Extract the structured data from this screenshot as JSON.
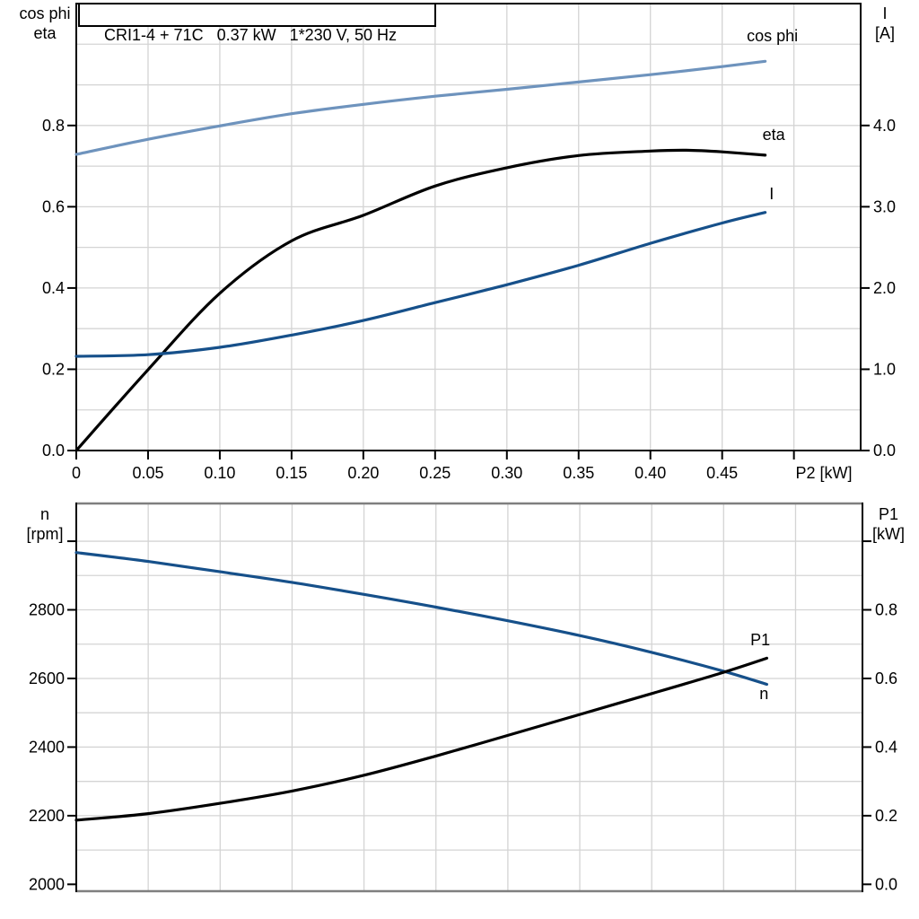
{
  "title_box": {
    "text": "CRI1-4 + 71C   0.37 kW   1*230 V, 50 Hz"
  },
  "colors": {
    "cos_phi_curve": "#6e93bd",
    "current_curve": "#16508a",
    "black_curve": "#000000",
    "grid": "#d4d4d4",
    "frame_gray": "#7f7f7f",
    "axis": "#000000",
    "text": "#000000"
  },
  "chart_data": [
    {
      "type": "line",
      "title": "CRI1-4 + 71C   0.37 kW   1*230 V, 50 Hz",
      "x_axis": {
        "label": "P2 [kW]",
        "lim": [
          0,
          0.5465
        ],
        "grid": [
          0.05,
          0.1,
          0.15,
          0.2,
          0.25,
          0.3,
          0.35,
          0.4,
          0.45,
          0.5
        ],
        "ticks": [
          {
            "v": 0,
            "label": "0"
          },
          {
            "v": 0.05,
            "label": "0.05"
          },
          {
            "v": 0.1,
            "label": "0.10"
          },
          {
            "v": 0.15,
            "label": "0.15"
          },
          {
            "v": 0.2,
            "label": "0.20"
          },
          {
            "v": 0.25,
            "label": "0.25"
          },
          {
            "v": 0.3,
            "label": "0.30"
          },
          {
            "v": 0.35,
            "label": "0.35"
          },
          {
            "v": 0.4,
            "label": "0.40"
          },
          {
            "v": 0.45,
            "label": "0.45"
          },
          {
            "v": 0.5,
            "label": ""
          }
        ]
      },
      "left_axis": {
        "label_lines": [
          "cos phi",
          "eta"
        ],
        "lim": [
          0,
          1.1
        ],
        "grid": [
          0.1,
          0.2,
          0.3,
          0.4,
          0.5,
          0.6,
          0.7,
          0.8,
          0.9,
          1.0
        ],
        "ticks": [
          {
            "v": 0.0,
            "label": "0.0"
          },
          {
            "v": 0.2,
            "label": "0.2"
          },
          {
            "v": 0.4,
            "label": "0.4"
          },
          {
            "v": 0.6,
            "label": "0.6"
          },
          {
            "v": 0.8,
            "label": "0.8"
          }
        ]
      },
      "right_axis": {
        "label_lines": [
          "I",
          "[A]"
        ],
        "lim": [
          0,
          5.5
        ],
        "ticks": [
          {
            "v": 0.0,
            "label": "0.0"
          },
          {
            "v": 1.0,
            "label": "1.0"
          },
          {
            "v": 2.0,
            "label": "2.0"
          },
          {
            "v": 3.0,
            "label": "3.0"
          },
          {
            "v": 4.0,
            "label": "4.0"
          }
        ]
      },
      "series": [
        {
          "name": "cos phi",
          "axis": "left",
          "color_key": "cos_phi_curve",
          "label": "cos phi",
          "label_at": {
            "x": 0.485,
            "y": 1.007
          },
          "points": [
            [
              0,
              0.729
            ],
            [
              0.05,
              0.766
            ],
            [
              0.1,
              0.799
            ],
            [
              0.15,
              0.829
            ],
            [
              0.2,
              0.852
            ],
            [
              0.25,
              0.872
            ],
            [
              0.3,
              0.889
            ],
            [
              0.35,
              0.907
            ],
            [
              0.4,
              0.925
            ],
            [
              0.45,
              0.945
            ],
            [
              0.48,
              0.958
            ]
          ]
        },
        {
          "name": "eta",
          "axis": "left",
          "color_key": "black_curve",
          "label": "eta",
          "label_at": {
            "x": 0.486,
            "y": 0.764
          },
          "points": [
            [
              0,
              0.0
            ],
            [
              0.05,
              0.199
            ],
            [
              0.1,
              0.387
            ],
            [
              0.15,
              0.516
            ],
            [
              0.2,
              0.579
            ],
            [
              0.25,
              0.651
            ],
            [
              0.3,
              0.696
            ],
            [
              0.35,
              0.726
            ],
            [
              0.4,
              0.737
            ],
            [
              0.425,
              0.739
            ],
            [
              0.45,
              0.735
            ],
            [
              0.48,
              0.727
            ]
          ]
        },
        {
          "name": "I",
          "axis": "right",
          "color_key": "current_curve",
          "label": "I",
          "label_at": {
            "x": 0.4845,
            "y": 3.09
          },
          "points": [
            [
              0,
              1.16
            ],
            [
              0.05,
              1.18
            ],
            [
              0.1,
              1.27
            ],
            [
              0.15,
              1.42
            ],
            [
              0.2,
              1.6
            ],
            [
              0.25,
              1.82
            ],
            [
              0.3,
              2.04
            ],
            [
              0.35,
              2.28
            ],
            [
              0.4,
              2.55
            ],
            [
              0.45,
              2.8
            ],
            [
              0.48,
              2.93
            ]
          ]
        }
      ]
    },
    {
      "type": "line",
      "title": "",
      "x_axis": {
        "label": "",
        "lim": [
          0,
          0.5465
        ],
        "grid": [
          0.05,
          0.1,
          0.15,
          0.2,
          0.25,
          0.3,
          0.35,
          0.4,
          0.45,
          0.5
        ],
        "ticks": []
      },
      "left_axis": {
        "label_lines": [
          "n",
          "[rpm]"
        ],
        "lim": [
          1980,
          3110
        ],
        "grid": [
          2100,
          2200,
          2300,
          2400,
          2500,
          2600,
          2700,
          2800,
          2900,
          3000
        ],
        "ticks": [
          {
            "v": 2000,
            "label": "2000"
          },
          {
            "v": 2200,
            "label": "2200"
          },
          {
            "v": 2400,
            "label": "2400"
          },
          {
            "v": 2600,
            "label": "2600"
          },
          {
            "v": 2800,
            "label": "2800"
          },
          {
            "v": 3000,
            "label": ""
          }
        ]
      },
      "right_axis": {
        "label_lines": [
          "P1",
          "[kW]"
        ],
        "lim": [
          -0.02,
          1.11
        ],
        "ticks": [
          {
            "v": 0.0,
            "label": "0.0"
          },
          {
            "v": 0.2,
            "label": "0.2"
          },
          {
            "v": 0.4,
            "label": "0.4"
          },
          {
            "v": 0.6,
            "label": "0.6"
          },
          {
            "v": 0.8,
            "label": "0.8"
          },
          {
            "v": 1.0,
            "label": ""
          }
        ]
      },
      "series": [
        {
          "name": "n",
          "axis": "left",
          "color_key": "current_curve",
          "label": "n",
          "label_at": {
            "x": 0.478,
            "y": 2540
          },
          "points": [
            [
              0,
              2967
            ],
            [
              0.05,
              2941
            ],
            [
              0.1,
              2911
            ],
            [
              0.15,
              2880
            ],
            [
              0.2,
              2845
            ],
            [
              0.25,
              2808
            ],
            [
              0.3,
              2768
            ],
            [
              0.35,
              2725
            ],
            [
              0.4,
              2676
            ],
            [
              0.45,
              2621
            ],
            [
              0.48,
              2583
            ]
          ]
        },
        {
          "name": "P1",
          "axis": "right",
          "color_key": "black_curve",
          "label": "P1",
          "label_at": {
            "x": 0.4755,
            "y": 0.697
          },
          "points": [
            [
              0,
              0.187
            ],
            [
              0.05,
              0.206
            ],
            [
              0.1,
              0.236
            ],
            [
              0.15,
              0.272
            ],
            [
              0.2,
              0.318
            ],
            [
              0.25,
              0.374
            ],
            [
              0.3,
              0.434
            ],
            [
              0.35,
              0.495
            ],
            [
              0.4,
              0.556
            ],
            [
              0.45,
              0.618
            ],
            [
              0.48,
              0.659
            ]
          ]
        }
      ]
    }
  ]
}
